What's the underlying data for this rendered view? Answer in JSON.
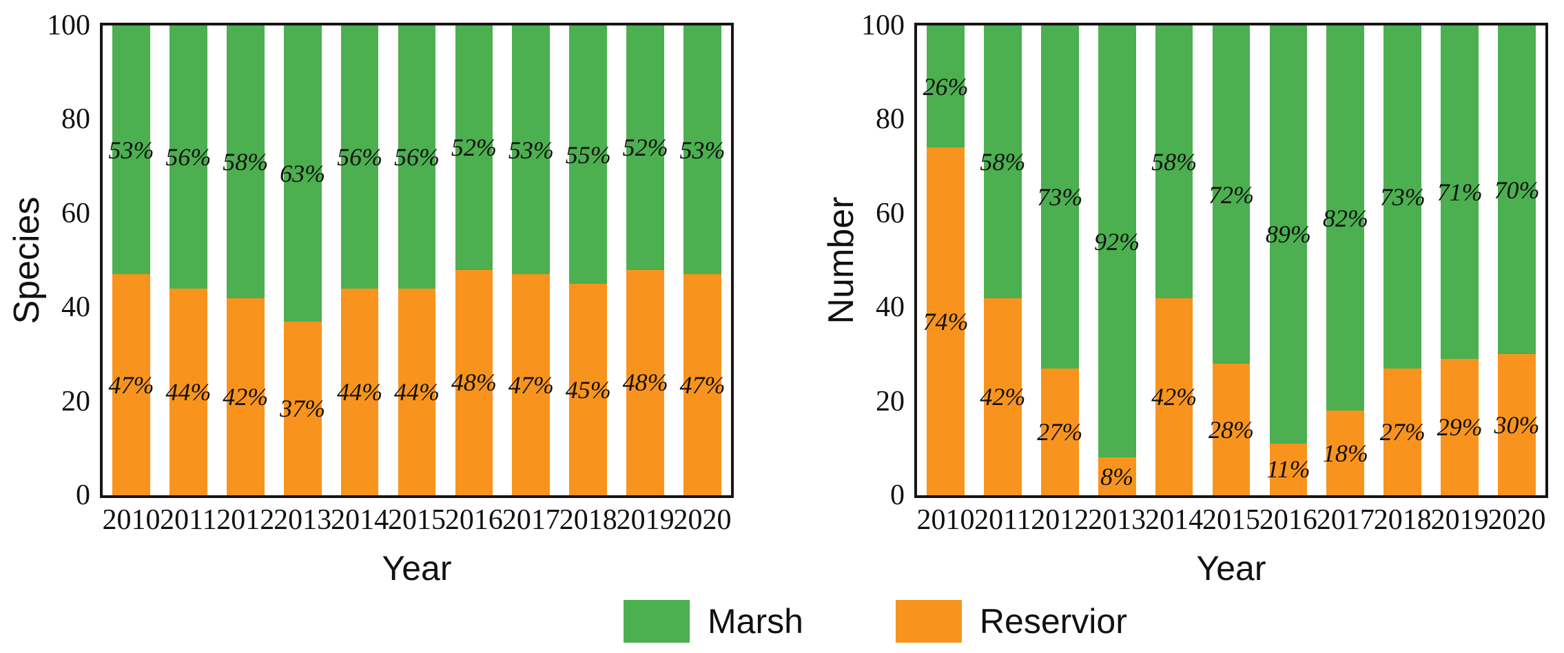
{
  "figure": {
    "background": "#ffffff",
    "axis_color": "#151515"
  },
  "legend": {
    "items": [
      {
        "label": "Marsh",
        "color": "#4CAF50"
      },
      {
        "label": "Reservior",
        "color": "#F8941D"
      }
    ]
  },
  "chart_data": [
    {
      "type": "bar",
      "stacked": true,
      "normalized_to_100_percent": true,
      "title": "",
      "ylabel": "Species",
      "xlabel": "Year",
      "categories": [
        "2010",
        "2011",
        "2012",
        "2013",
        "2014",
        "2015",
        "2016",
        "2017",
        "2018",
        "2019",
        "2020"
      ],
      "series": [
        {
          "name": "Reservior",
          "color": "#F8941D",
          "values": [
            47,
            44,
            42,
            37,
            44,
            44,
            48,
            47,
            45,
            48,
            47
          ],
          "data_labels": [
            "47%",
            "44%",
            "42%",
            "37%",
            "44%",
            "44%",
            "48%",
            "47%",
            "45%",
            "48%",
            "47%"
          ]
        },
        {
          "name": "Marsh",
          "color": "#4CAF50",
          "values": [
            53,
            56,
            58,
            63,
            56,
            56,
            52,
            53,
            55,
            52,
            53
          ],
          "data_labels": [
            "53%",
            "56%",
            "58%",
            "63%",
            "56%",
            "56%",
            "52%",
            "53%",
            "55%",
            "52%",
            "53%"
          ]
        }
      ],
      "ylim": [
        0,
        100
      ],
      "yticks": [
        "0",
        "20",
        "40",
        "60",
        "80",
        "100"
      ],
      "grid": false,
      "legend_position": "bottom"
    },
    {
      "type": "bar",
      "stacked": true,
      "normalized_to_100_percent": true,
      "title": "",
      "ylabel": "Number",
      "xlabel": "Year",
      "categories": [
        "2010",
        "2011",
        "2012",
        "2013",
        "2014",
        "2015",
        "2016",
        "2017",
        "2018",
        "2019",
        "2020"
      ],
      "series": [
        {
          "name": "Reservior",
          "color": "#F8941D",
          "values": [
            74,
            42,
            27,
            8,
            42,
            28,
            11,
            18,
            27,
            29,
            30
          ],
          "data_labels": [
            "74%",
            "42%",
            "27%",
            "8%",
            "42%",
            "28%",
            "11%",
            "18%",
            "27%",
            "29%",
            "30%"
          ]
        },
        {
          "name": "Marsh",
          "color": "#4CAF50",
          "values": [
            26,
            58,
            73,
            92,
            58,
            72,
            89,
            82,
            73,
            71,
            70
          ],
          "data_labels": [
            "26%",
            "58%",
            "73%",
            "92%",
            "58%",
            "72%",
            "89%",
            "82%",
            "73%",
            "71%",
            "70%"
          ]
        }
      ],
      "ylim": [
        0,
        100
      ],
      "yticks": [
        "0",
        "20",
        "40",
        "60",
        "80",
        "100"
      ],
      "grid": false,
      "legend_position": "bottom"
    }
  ]
}
